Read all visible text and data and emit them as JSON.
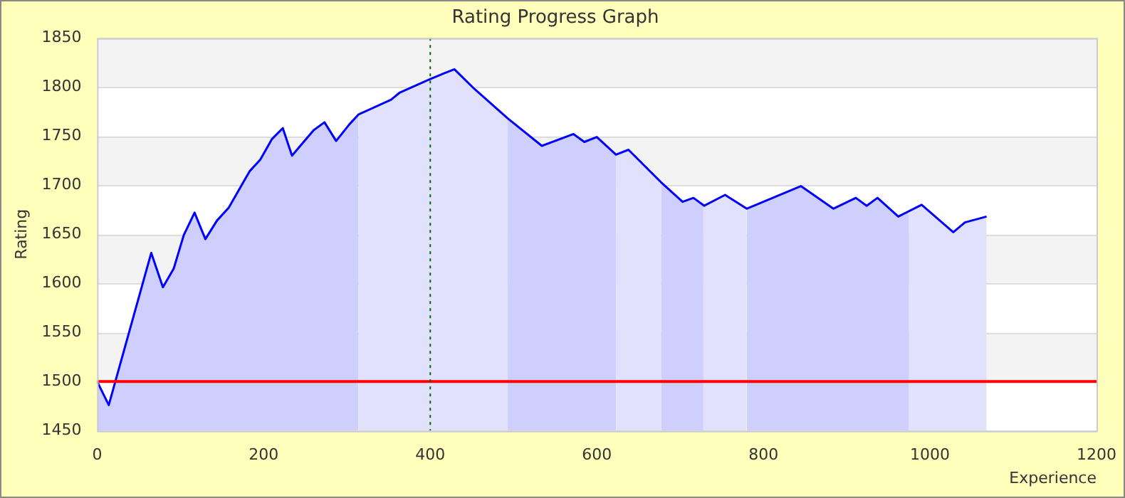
{
  "chart_data": {
    "type": "area",
    "title": "Rating Progress Graph",
    "xlabel": "Experience",
    "ylabel": "Rating",
    "xlim": [
      0,
      1200
    ],
    "xticks": [
      0,
      200,
      400,
      600,
      800,
      1000,
      1200
    ],
    "ylim": [
      1450,
      1850
    ],
    "yticks": [
      1450,
      1500,
      1550,
      1600,
      1650,
      1700,
      1750,
      1800,
      1850
    ],
    "grid": "y",
    "legend": false,
    "marker": "none",
    "series": [
      {
        "type": "area",
        "color": "#cfcffd",
        "x": [
          0,
          14,
          65,
          79,
          92,
          104,
          117,
          130,
          144,
          158,
          183,
          196,
          210,
          223,
          234,
          260,
          273,
          287,
          303,
          314
        ],
        "values": [
          1500,
          1476,
          1631,
          1596,
          1615,
          1649,
          1672,
          1645,
          1664,
          1677,
          1714,
          1726,
          1747,
          1758,
          1730,
          1756,
          1764,
          1745,
          1762,
          1772
        ]
      },
      {
        "type": "area",
        "color": "#e1e1fc",
        "x": [
          314,
          353,
          363,
          400,
          417,
          429,
          453,
          493
        ],
        "values": [
          1772,
          1787,
          1794,
          1808,
          1814,
          1818,
          1798,
          1768
        ]
      },
      {
        "type": "area",
        "color": "#cfcffd",
        "x": [
          493,
          534,
          572,
          585,
          600,
          623
        ],
        "values": [
          1768,
          1740,
          1752,
          1744,
          1749,
          1731
        ]
      },
      {
        "type": "area",
        "color": "#e1e1fc",
        "x": [
          623,
          638,
          677
        ],
        "values": [
          1731,
          1736,
          1703
        ]
      },
      {
        "type": "area",
        "color": "#cfcffd",
        "x": [
          677,
          703,
          716,
          728
        ],
        "values": [
          1703,
          1683,
          1687,
          1680
        ]
      },
      {
        "type": "area",
        "color": "#e1e1fc",
        "x": [
          728,
          729,
          754,
          780
        ],
        "values": [
          1680,
          1679,
          1690,
          1676
        ]
      },
      {
        "type": "area",
        "color": "#cfcffd",
        "x": [
          780,
          845,
          884,
          911,
          924,
          937,
          962,
          975
        ],
        "values": [
          1676,
          1699,
          1676,
          1687,
          1679,
          1687,
          1668,
          1674
        ]
      },
      {
        "type": "area",
        "color": "#e1e1fc",
        "x": [
          975,
          990,
          1028,
          1042,
          1068
        ],
        "values": [
          1674,
          1680,
          1652,
          1662,
          1668
        ]
      },
      {
        "type": "line",
        "color": "#0000ff",
        "x": [
          0,
          14,
          65,
          79,
          92,
          104,
          117,
          130,
          144,
          158,
          183,
          196,
          210,
          223,
          234,
          260,
          273,
          287,
          303,
          314,
          353,
          363,
          400,
          417,
          429,
          453,
          493,
          534,
          572,
          585,
          600,
          623,
          638,
          677,
          703,
          716,
          729,
          754,
          780,
          845,
          884,
          911,
          924,
          937,
          962,
          990,
          1028,
          1042,
          1068
        ],
        "values": [
          1500,
          1476,
          1631,
          1596,
          1615,
          1649,
          1672,
          1645,
          1664,
          1677,
          1714,
          1726,
          1747,
          1758,
          1730,
          1756,
          1764,
          1745,
          1762,
          1772,
          1787,
          1794,
          1808,
          1814,
          1818,
          1798,
          1768,
          1740,
          1752,
          1744,
          1749,
          1731,
          1736,
          1703,
          1683,
          1687,
          1679,
          1690,
          1676,
          1699,
          1676,
          1687,
          1679,
          1687,
          1668,
          1680,
          1652,
          1662,
          1668
        ]
      }
    ],
    "ref_lines": [
      {
        "axis": "y",
        "value": 1500,
        "color": "#ff0000",
        "line_style": "solid"
      },
      {
        "axis": "x",
        "value": 400,
        "color": "#006600",
        "line_style": "dotted"
      }
    ]
  }
}
